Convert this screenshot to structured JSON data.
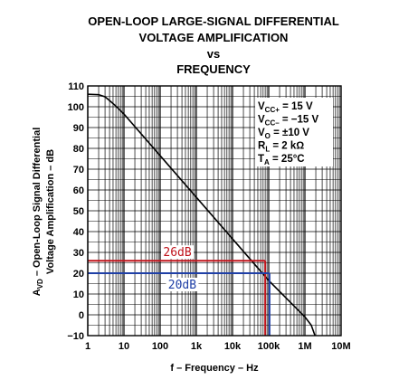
{
  "chart_data": {
    "type": "line",
    "title_lines": [
      "OPEN-LOOP LARGE-SIGNAL DIFFERENTIAL",
      "VOLTAGE AMPLIFICATION",
      "vs",
      "FREQUENCY"
    ],
    "xlabel": "f – Frequency – Hz",
    "ylabel_lines": [
      "A",
      "VD",
      " – Open-Loop Signal Differential",
      "Voltage Amplification – dB"
    ],
    "x_scale": "log",
    "xlim": [
      1,
      10000000
    ],
    "ylim": [
      -10,
      110
    ],
    "x_ticks": [
      {
        "value": 1,
        "label": "1"
      },
      {
        "value": 10,
        "label": "10"
      },
      {
        "value": 100,
        "label": "100"
      },
      {
        "value": 1000,
        "label": "1k"
      },
      {
        "value": 10000,
        "label": "10k"
      },
      {
        "value": 100000,
        "label": "100k"
      },
      {
        "value": 1000000,
        "label": "1M"
      },
      {
        "value": 10000000,
        "label": "10M"
      }
    ],
    "y_ticks": [
      {
        "value": 110,
        "label": "110"
      },
      {
        "value": 100,
        "label": "100"
      },
      {
        "value": 90,
        "label": "90"
      },
      {
        "value": 80,
        "label": "80"
      },
      {
        "value": 70,
        "label": "70"
      },
      {
        "value": 60,
        "label": "60"
      },
      {
        "value": 50,
        "label": "50"
      },
      {
        "value": 40,
        "label": "40"
      },
      {
        "value": 30,
        "label": "30"
      },
      {
        "value": 20,
        "label": "20"
      },
      {
        "value": 10,
        "label": "10"
      },
      {
        "value": 0,
        "label": "0"
      },
      {
        "value": -10,
        "label": "−10"
      }
    ],
    "grid": true,
    "series": [
      {
        "color": "#000000",
        "points": [
          {
            "x": 1,
            "y": 106
          },
          {
            "x": 2,
            "y": 105.8
          },
          {
            "x": 3,
            "y": 104.8
          },
          {
            "x": 4,
            "y": 103
          },
          {
            "x": 6,
            "y": 100.3
          },
          {
            "x": 10,
            "y": 96.5
          },
          {
            "x": 100,
            "y": 76.5
          },
          {
            "x": 1000,
            "y": 56.5
          },
          {
            "x": 10000,
            "y": 36.5
          },
          {
            "x": 100000,
            "y": 16.5
          },
          {
            "x": 1000000,
            "y": -1
          },
          {
            "x": 1500000,
            "y": -5
          },
          {
            "x": 1900000,
            "y": -10
          }
        ]
      }
    ],
    "conditions": [
      {
        "main": "V",
        "sub": "CC+",
        "rest": " = 15 V"
      },
      {
        "main": "V",
        "sub": "CC–",
        "rest": " = −15 V"
      },
      {
        "main": "V",
        "sub": "O",
        "rest": " = ±10 V"
      },
      {
        "main": "R",
        "sub": "L",
        "rest": " = 2 kΩ"
      },
      {
        "main": "T",
        "sub": "A",
        "rest": " = 25°C"
      }
    ],
    "annotations": [
      {
        "label": "26dB",
        "y": 26,
        "x_end": 80000,
        "color": "#c0141c"
      },
      {
        "label": "20dB",
        "y": 20,
        "x_end": 105000,
        "color": "#1f3fa6"
      }
    ]
  }
}
